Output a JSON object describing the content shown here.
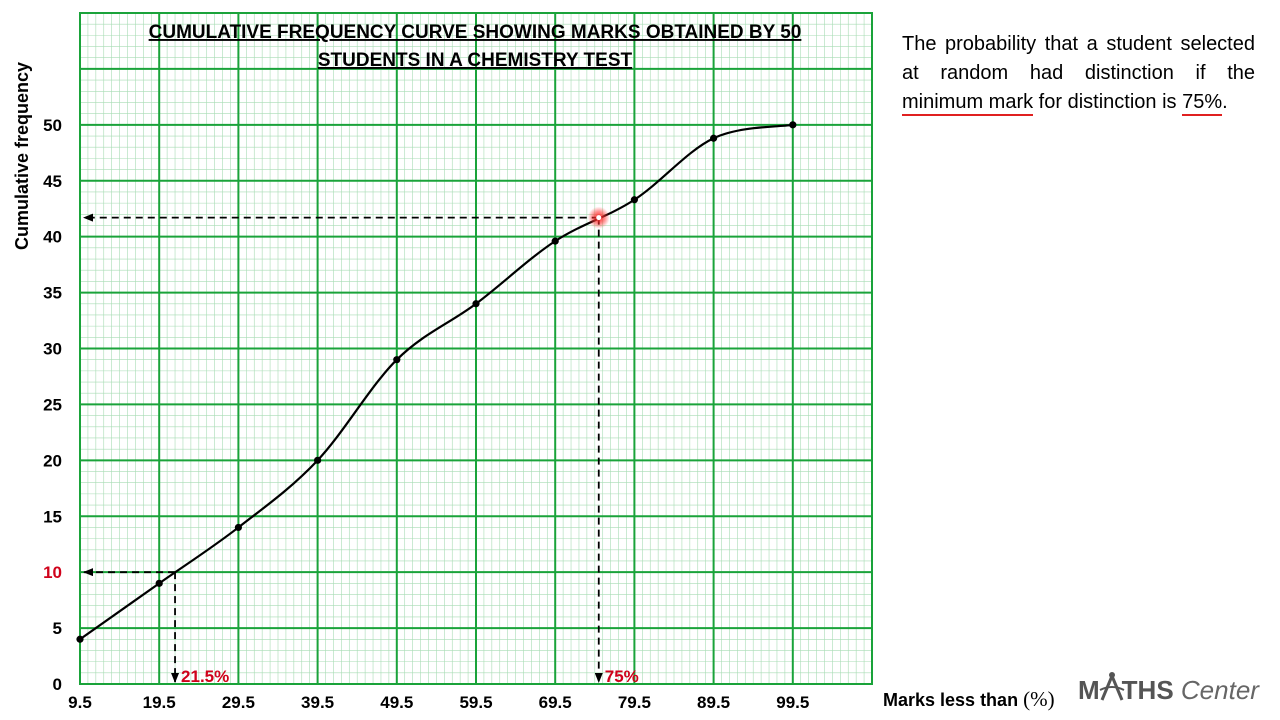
{
  "question": {
    "text_before": "The probability that a student selected at random had distinction if the ",
    "underlined_1": "minimum mark",
    "text_middle": " for distinction is ",
    "underlined_2": "75%",
    "text_after": "."
  },
  "brand": {
    "text_part1": "M",
    "text_part2": "THS",
    "text_part3": " Center"
  },
  "chart_data": {
    "type": "line",
    "title_line1": "CUMULATIVE FREQUENCY CURVE SHOWING MARKS OBTAINED BY 50",
    "title_line2": "STUDENTS IN A CHEMISTRY TEST",
    "xlabel": "Marks less than",
    "xlabel_unit": "(%)",
    "ylabel": "Cumulative frequency",
    "x_ticks": [
      "9.5",
      "19.5",
      "29.5",
      "39.5",
      "49.5",
      "59.5",
      "69.5",
      "79.5",
      "89.5",
      "99.5"
    ],
    "y_ticks": [
      "0",
      "5",
      "10",
      "15",
      "20",
      "25",
      "30",
      "35",
      "40",
      "45",
      "50"
    ],
    "xlim": [
      9.5,
      109.5
    ],
    "ylim": [
      0,
      60
    ],
    "grid": true,
    "highlight_y_tick": "10",
    "points": [
      {
        "x": 9.5,
        "y": 4
      },
      {
        "x": 19.5,
        "y": 9
      },
      {
        "x": 29.5,
        "y": 14
      },
      {
        "x": 39.5,
        "y": 20
      },
      {
        "x": 49.5,
        "y": 29
      },
      {
        "x": 59.5,
        "y": 34
      },
      {
        "x": 69.5,
        "y": 39.6
      },
      {
        "x": 79.5,
        "y": 43.3
      },
      {
        "x": 89.5,
        "y": 48.8
      },
      {
        "x": 99.5,
        "y": 50
      }
    ],
    "annotations": [
      {
        "x": 21.5,
        "y": 10,
        "label": "21.5%"
      },
      {
        "x": 75,
        "y": 41.7,
        "label": "75%"
      }
    ]
  }
}
